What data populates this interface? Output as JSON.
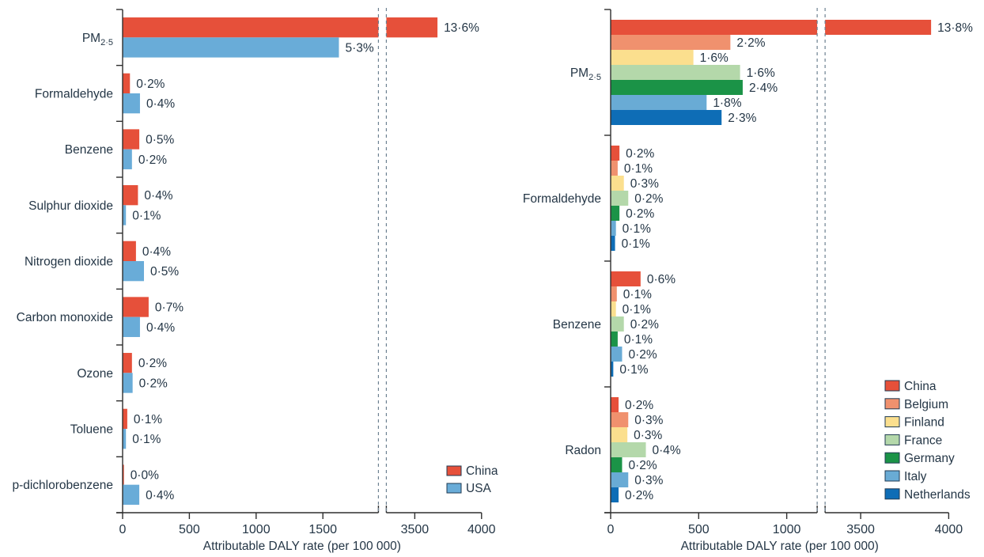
{
  "style": {
    "text_color": "#243646",
    "axis_color": "#2e2e2e",
    "break_line_color": "#6d8191",
    "legend_swatch_border": "#1f3a52",
    "background": "#ffffff"
  },
  "chart_data": [
    {
      "type": "bar",
      "orientation": "horizontal",
      "title": "",
      "xlabel": "Attributable DALY rate (per 100 000)",
      "x_ticks": [
        0,
        500,
        1000,
        1500,
        3500,
        4000
      ],
      "axis_break": {
        "from": 1916,
        "to": 3287
      },
      "grid": false,
      "legend_position": "lower-right",
      "categories": [
        "PM2·5",
        "Formaldehyde",
        "Benzene",
        "Sulphur dioxide",
        "Nitrogen dioxide",
        "Carbon monoxide",
        "Ozone",
        "Toluene",
        "p-dichlorobenzene"
      ],
      "series": [
        {
          "name": "China",
          "color": "#e6503a",
          "values": [
            3670,
            55,
            125,
            115,
            100,
            195,
            70,
            35,
            10
          ],
          "labels": [
            "13·6%",
            "0·2%",
            "0·5%",
            "0·4%",
            "0·4%",
            "0·7%",
            "0·2%",
            "0·1%",
            "0·0%"
          ]
        },
        {
          "name": "USA",
          "color": "#69acd8",
          "values": [
            1620,
            130,
            70,
            25,
            160,
            130,
            75,
            25,
            125
          ],
          "labels": [
            "5·3%",
            "0·4%",
            "0·2%",
            "0·1%",
            "0·5%",
            "0·4%",
            "0·2%",
            "0·1%",
            "0·4%"
          ]
        }
      ]
    },
    {
      "type": "bar",
      "orientation": "horizontal",
      "title": "",
      "xlabel": "Attributable DALY rate (per 100 000)",
      "x_ticks": [
        0,
        500,
        1000,
        3500,
        4000
      ],
      "axis_break": {
        "from": 1173,
        "to": 3298
      },
      "grid": false,
      "legend_position": "middle-right",
      "categories": [
        "PM2·5",
        "Formaldehyde",
        "Benzene",
        "Radon"
      ],
      "series": [
        {
          "name": "China",
          "color": "#e6503a",
          "values": [
            3900,
            50,
            170,
            45
          ],
          "labels": [
            "13·8%",
            "0·2%",
            "0·6%",
            "0·2%"
          ]
        },
        {
          "name": "Belgium",
          "color": "#f0916e",
          "values": [
            680,
            40,
            35,
            100
          ],
          "labels": [
            "2·2%",
            "0·1%",
            "0·1%",
            "0·3%"
          ]
        },
        {
          "name": "Finland",
          "color": "#fbdf8e",
          "values": [
            470,
            75,
            30,
            95
          ],
          "labels": [
            "1·6%",
            "0·3%",
            "0·1%",
            "0·3%"
          ]
        },
        {
          "name": "France",
          "color": "#b4d8aa",
          "values": [
            735,
            100,
            75,
            200
          ],
          "labels": [
            "1·6%",
            "0·2%",
            "0·2%",
            "0·4%"
          ]
        },
        {
          "name": "Germany",
          "color": "#1b9347",
          "values": [
            750,
            50,
            40,
            65
          ],
          "labels": [
            "2·4%",
            "0·2%",
            "0·1%",
            "0·2%"
          ]
        },
        {
          "name": "Italy",
          "color": "#69abd5",
          "values": [
            545,
            30,
            65,
            100
          ],
          "labels": [
            "1·8%",
            "0·1%",
            "0·2%",
            "0·3%"
          ]
        },
        {
          "name": "Netherlands",
          "color": "#0e6db6",
          "values": [
            630,
            25,
            15,
            45
          ],
          "labels": [
            "2·3%",
            "0·1%",
            "0·1%",
            "0·2%"
          ]
        }
      ]
    }
  ]
}
